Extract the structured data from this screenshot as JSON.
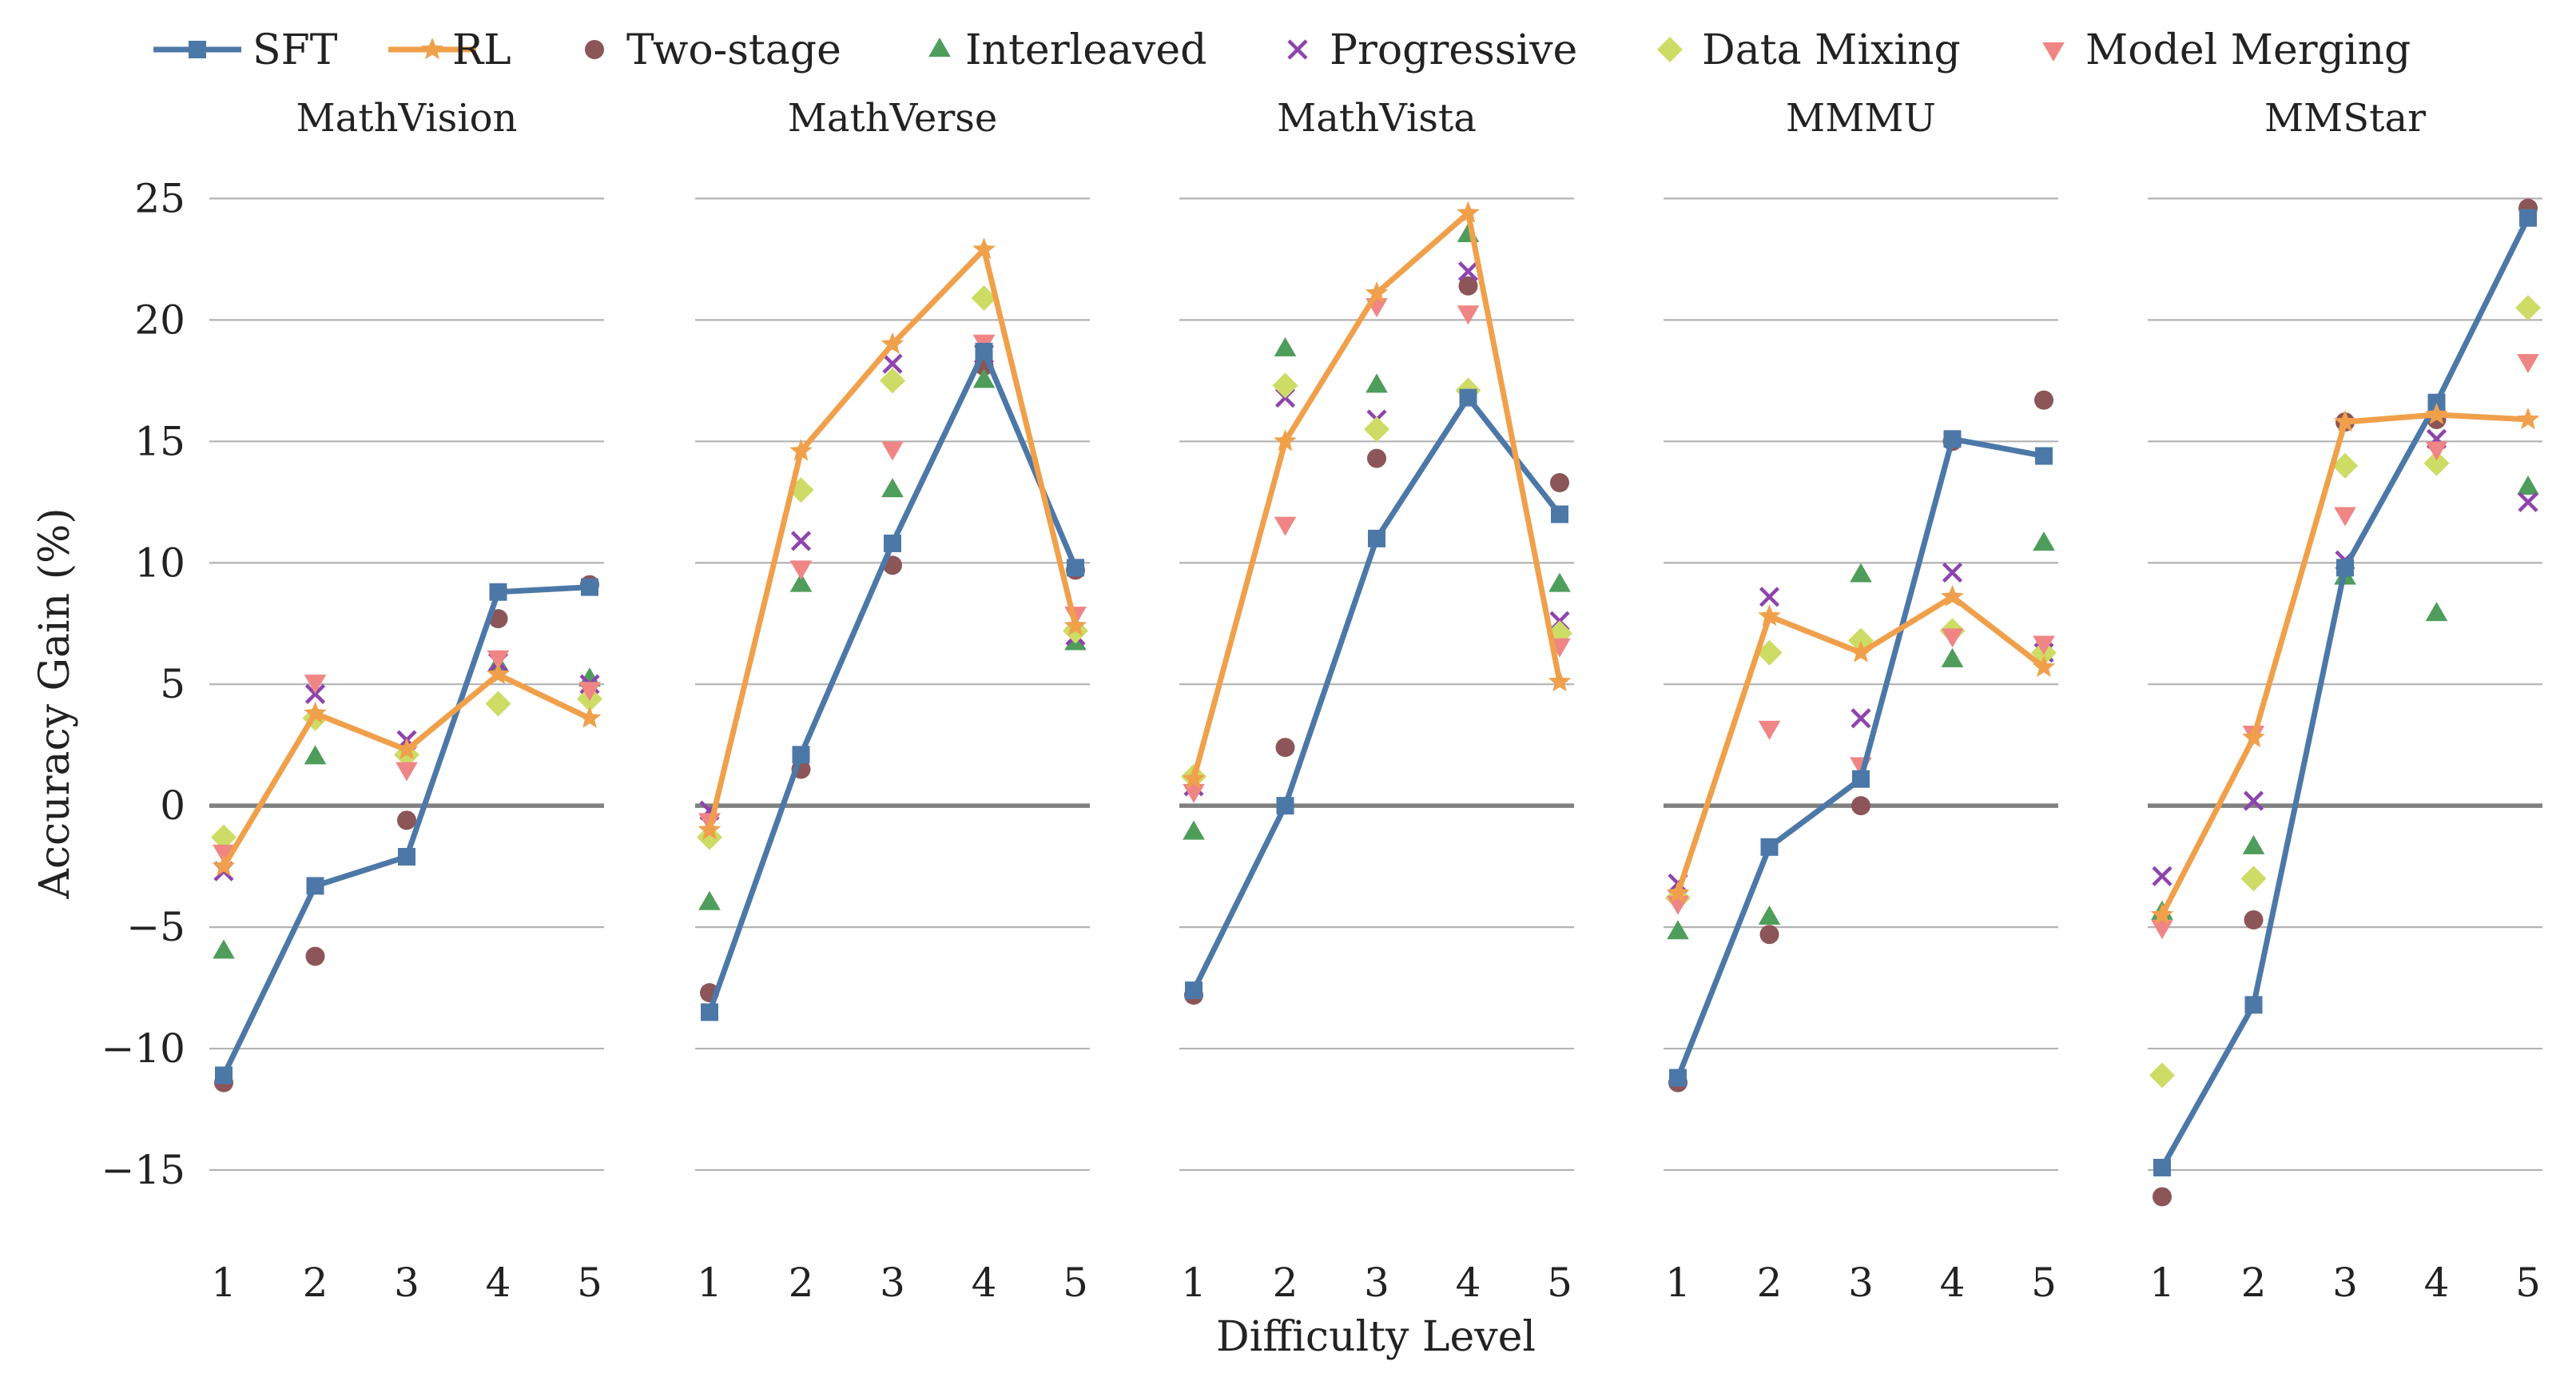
{
  "chart_data": {
    "type": "line",
    "xlabel": "Difficulty Level",
    "ylabel": "Accuracy Gain (%)",
    "ylim": [
      -17.5,
      26
    ],
    "yticks": [
      -15,
      -10,
      -5,
      0,
      5,
      10,
      15,
      20,
      25
    ],
    "ytick_labels": [
      "−15",
      "−10",
      "−5",
      "0",
      "5",
      "10",
      "15",
      "20",
      "25"
    ],
    "x": [
      1,
      2,
      3,
      4,
      5
    ],
    "xtick_labels": [
      "1",
      "2",
      "3",
      "4",
      "5"
    ],
    "legend_position": "top",
    "legend": [
      {
        "key": "sft",
        "label": "SFT",
        "marker": "square",
        "line": true,
        "color": "#4c78a8"
      },
      {
        "key": "rl",
        "label": "RL",
        "marker": "star",
        "line": true,
        "color": "#f0a04b"
      },
      {
        "key": "two_stage",
        "label": "Two-stage",
        "marker": "circle",
        "line": false,
        "color": "#8c5557"
      },
      {
        "key": "interleaved",
        "label": "Interleaved",
        "marker": "triangle-up",
        "line": false,
        "color": "#4f9d5a"
      },
      {
        "key": "progressive",
        "label": "Progressive",
        "marker": "x",
        "line": false,
        "color": "#8e44ad"
      },
      {
        "key": "data_mixing",
        "label": "Data Mixing",
        "marker": "diamond",
        "line": false,
        "color": "#cddc64"
      },
      {
        "key": "model_merging",
        "label": "Model Merging",
        "marker": "triangle-down",
        "line": false,
        "color": "#f08585"
      }
    ],
    "panels": [
      {
        "title": "MathVision",
        "series": {
          "sft": [
            -11.1,
            -3.3,
            -2.1,
            8.8,
            9.0
          ],
          "rl": [
            -2.5,
            3.8,
            2.3,
            5.4,
            3.6
          ],
          "two_stage": [
            -11.4,
            -6.2,
            -0.6,
            7.7,
            9.1
          ],
          "interleaved": [
            -6.0,
            2.0,
            2.3,
            5.8,
            5.2
          ],
          "progressive": [
            -2.7,
            4.6,
            2.7,
            5.9,
            5.0
          ],
          "data_mixing": [
            -1.3,
            3.6,
            2.1,
            4.2,
            4.4
          ],
          "model_merging": [
            -1.9,
            5.1,
            1.5,
            6.1,
            4.8
          ]
        }
      },
      {
        "title": "MathVerse",
        "series": {
          "sft": [
            -8.5,
            2.1,
            10.8,
            18.7,
            9.8
          ],
          "rl": [
            -1.0,
            14.6,
            19.0,
            22.9,
            7.4
          ],
          "two_stage": [
            -7.7,
            1.5,
            9.9,
            18.1,
            9.7
          ],
          "interleaved": [
            -4.0,
            9.1,
            13.0,
            17.5,
            6.7
          ],
          "progressive": [
            -0.2,
            10.9,
            18.2,
            18.6,
            7.0
          ],
          "data_mixing": [
            -1.3,
            13.0,
            17.5,
            20.9,
            7.2
          ],
          "model_merging": [
            -0.6,
            9.8,
            14.7,
            19.1,
            7.9
          ]
        }
      },
      {
        "title": "MathVista",
        "series": {
          "sft": [
            -7.6,
            0.0,
            11.0,
            16.8,
            12.0
          ],
          "rl": [
            1.1,
            15.0,
            21.1,
            24.4,
            5.1
          ],
          "two_stage": [
            -7.8,
            2.4,
            14.3,
            21.4,
            13.3
          ],
          "interleaved": [
            -1.1,
            18.8,
            17.3,
            23.5,
            9.1
          ],
          "progressive": [
            0.8,
            16.8,
            15.9,
            22.0,
            7.6
          ],
          "data_mixing": [
            1.2,
            17.3,
            15.5,
            17.1,
            7.1
          ],
          "model_merging": [
            0.6,
            11.6,
            20.6,
            20.3,
            6.6
          ]
        }
      },
      {
        "title": "MMMU",
        "series": {
          "sft": [
            -11.2,
            -1.7,
            1.1,
            15.1,
            14.4
          ],
          "rl": [
            -3.6,
            7.8,
            6.3,
            8.6,
            5.7
          ],
          "two_stage": [
            -11.4,
            -5.3,
            0.0,
            15.0,
            16.7
          ],
          "interleaved": [
            -5.2,
            -4.6,
            9.5,
            6.0,
            10.8
          ],
          "progressive": [
            -3.2,
            8.6,
            3.6,
            9.6,
            6.3
          ],
          "data_mixing": [
            -3.8,
            6.3,
            6.8,
            7.2,
            6.3
          ],
          "model_merging": [
            -4.0,
            3.2,
            1.7,
            7.0,
            6.7
          ]
        }
      },
      {
        "title": "MMStar",
        "series": {
          "sft": [
            -14.9,
            -8.2,
            9.8,
            16.6,
            24.2
          ],
          "rl": [
            -4.5,
            2.8,
            15.8,
            16.1,
            15.9
          ],
          "two_stage": [
            -16.1,
            -4.7,
            15.8,
            15.9,
            24.6
          ],
          "interleaved": [
            -4.4,
            -1.7,
            9.4,
            7.9,
            13.1
          ],
          "progressive": [
            -2.9,
            0.2,
            10.1,
            15.1,
            12.5
          ],
          "data_mixing": [
            -11.1,
            -3.0,
            14.0,
            14.1,
            20.5
          ],
          "model_merging": [
            -5.0,
            3.0,
            12.0,
            14.7,
            18.3
          ]
        }
      }
    ]
  }
}
